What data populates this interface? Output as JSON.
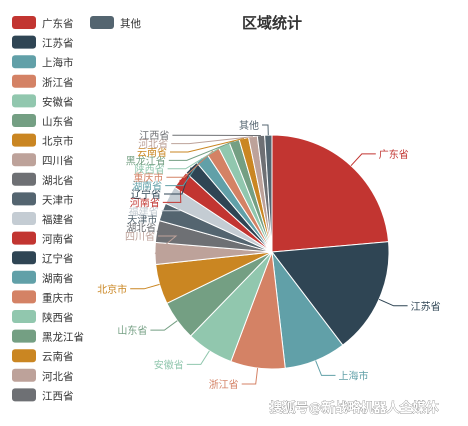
{
  "chart_data": {
    "type": "pie",
    "title": "区域统计",
    "legend_position": "left",
    "series": [
      {
        "name": "广东省",
        "value": 23.5,
        "color": "#c23531"
      },
      {
        "name": "江苏省",
        "value": 16.0,
        "color": "#2f4554"
      },
      {
        "name": "上海市",
        "value": 8.5,
        "color": "#61a0a8"
      },
      {
        "name": "浙江省",
        "value": 7.5,
        "color": "#d48265"
      },
      {
        "name": "安徽省",
        "value": 6.5,
        "color": "#91c7ae"
      },
      {
        "name": "山东省",
        "value": 5.5,
        "color": "#749f83"
      },
      {
        "name": "北京市",
        "value": 5.5,
        "color": "#ca8622"
      },
      {
        "name": "四川省",
        "value": 3.0,
        "color": "#bda29a"
      },
      {
        "name": "湖北省",
        "value": 3.0,
        "color": "#6e7074"
      },
      {
        "name": "天津市",
        "value": 2.5,
        "color": "#546570"
      },
      {
        "name": "福建省",
        "value": 2.5,
        "color": "#c4ccd3"
      },
      {
        "name": "河南省",
        "value": 2.5,
        "color": "#c23531"
      },
      {
        "name": "辽宁省",
        "value": 2.0,
        "color": "#2f4554"
      },
      {
        "name": "湖南省",
        "value": 1.8,
        "color": "#61a0a8"
      },
      {
        "name": "重庆市",
        "value": 1.8,
        "color": "#d48265"
      },
      {
        "name": "陕西省",
        "value": 1.6,
        "color": "#91c7ae"
      },
      {
        "name": "黑龙江省",
        "value": 1.4,
        "color": "#749f83"
      },
      {
        "name": "云南省",
        "value": 1.3,
        "color": "#ca8622"
      },
      {
        "name": "河北省",
        "value": 1.2,
        "color": "#bda29a"
      },
      {
        "name": "江西省",
        "value": 1.0,
        "color": "#6e7074"
      },
      {
        "name": "其他",
        "value": 1.0,
        "color": "#546570"
      }
    ]
  },
  "legend_order": [
    "广东省",
    "其他",
    "江苏省",
    "上海市",
    "浙江省",
    "安徽省",
    "山东省",
    "北京市",
    "四川省",
    "湖北省",
    "天津市",
    "福建省",
    "河南省",
    "辽宁省",
    "湖南省",
    "重庆市",
    "陕西省",
    "黑龙江省",
    "云南省",
    "河北省",
    "江西省"
  ],
  "watermark": "搜狐号@新战略机器人全媒体"
}
